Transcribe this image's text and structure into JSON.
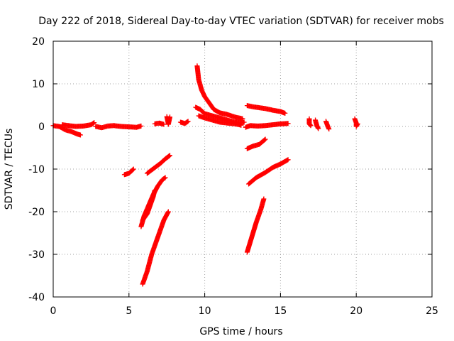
{
  "chart_data": {
    "type": "scatter",
    "title": "Day 222 of 2018, Sidereal Day-to-day VTEC variation (SDTVAR) for receiver mobs",
    "xlabel": "GPS time / hours",
    "ylabel": "SDTVAR / TECUs",
    "xlim": [
      0,
      25
    ],
    "ylim": [
      -40,
      20
    ],
    "xticks": [
      0,
      5,
      10,
      15,
      20,
      25
    ],
    "yticks": [
      -40,
      -30,
      -20,
      -10,
      0,
      10,
      20
    ],
    "grid": true,
    "marker": "+",
    "colors": {
      "series": "#ff0000",
      "grid": "#a0a0a0",
      "axis": "#000000"
    },
    "series": [
      {
        "name": "SDTVAR",
        "segments": [
          [
            [
              0.0,
              0.2
            ],
            [
              0.4,
              0.0
            ],
            [
              0.8,
              -0.8
            ],
            [
              1.2,
              -1.2
            ],
            [
              1.6,
              -1.8
            ],
            [
              1.8,
              -2.0
            ]
          ],
          [
            [
              0.6,
              0.4
            ],
            [
              1.0,
              0.2
            ],
            [
              1.5,
              0.0
            ],
            [
              2.0,
              0.1
            ],
            [
              2.5,
              0.4
            ],
            [
              2.7,
              0.9
            ]
          ],
          [
            [
              2.8,
              0.0
            ],
            [
              3.2,
              -0.3
            ],
            [
              3.6,
              0.1
            ],
            [
              4.0,
              0.2
            ],
            [
              4.5,
              0.0
            ],
            [
              5.0,
              -0.1
            ],
            [
              5.5,
              -0.2
            ],
            [
              5.8,
              0.1
            ]
          ],
          [
            [
              4.7,
              -11.3
            ],
            [
              5.0,
              -11.0
            ],
            [
              5.3,
              -10.0
            ]
          ],
          [
            [
              5.8,
              -23.5
            ],
            [
              6.0,
              -21.0
            ],
            [
              6.3,
              -18.5
            ],
            [
              6.6,
              -16.0
            ],
            [
              6.9,
              -14.0
            ],
            [
              7.2,
              -12.5
            ],
            [
              7.4,
              -12.0
            ]
          ],
          [
            [
              5.9,
              -22.0
            ],
            [
              6.2,
              -20.5
            ],
            [
              6.4,
              -18.5
            ],
            [
              6.6,
              -16.5
            ],
            [
              6.7,
              -15.0
            ]
          ],
          [
            [
              5.9,
              -37.0
            ],
            [
              6.2,
              -34.0
            ],
            [
              6.5,
              -30.0
            ],
            [
              6.8,
              -27.0
            ],
            [
              7.0,
              -25.0
            ],
            [
              7.3,
              -22.0
            ],
            [
              7.6,
              -20.0
            ]
          ],
          [
            [
              6.2,
              -11.0
            ],
            [
              6.5,
              -10.2
            ],
            [
              6.8,
              -9.4
            ],
            [
              7.1,
              -8.6
            ],
            [
              7.4,
              -7.6
            ],
            [
              7.7,
              -6.8
            ]
          ],
          [
            [
              6.7,
              0.6
            ],
            [
              7.0,
              0.8
            ],
            [
              7.3,
              0.5
            ]
          ],
          [
            [
              7.5,
              2.3
            ],
            [
              7.6,
              0.5
            ],
            [
              7.7,
              2.2
            ]
          ],
          [
            [
              8.4,
              1.0
            ],
            [
              8.7,
              0.7
            ],
            [
              8.9,
              1.2
            ]
          ],
          [
            [
              9.5,
              14.2
            ],
            [
              9.6,
              11.0
            ],
            [
              9.8,
              8.5
            ],
            [
              10.0,
              7.0
            ],
            [
              10.3,
              5.5
            ],
            [
              10.6,
              4.0
            ],
            [
              11.0,
              3.2
            ],
            [
              11.5,
              2.8
            ],
            [
              12.0,
              2.2
            ],
            [
              12.5,
              1.8
            ]
          ],
          [
            [
              9.4,
              4.5
            ],
            [
              9.7,
              4.0
            ],
            [
              10.0,
              3.0
            ],
            [
              10.5,
              2.5
            ],
            [
              11.0,
              2.0
            ],
            [
              11.5,
              1.5
            ],
            [
              12.0,
              1.0
            ],
            [
              12.6,
              1.0
            ]
          ],
          [
            [
              9.6,
              2.5
            ],
            [
              10.0,
              2.0
            ],
            [
              10.5,
              1.5
            ],
            [
              11.0,
              1.0
            ],
            [
              11.5,
              0.8
            ],
            [
              12.0,
              0.6
            ],
            [
              12.4,
              0.3
            ]
          ],
          [
            [
              12.7,
              -0.2
            ],
            [
              13.0,
              0.2
            ],
            [
              13.5,
              0.1
            ],
            [
              14.0,
              0.2
            ],
            [
              14.5,
              0.4
            ],
            [
              15.0,
              0.6
            ],
            [
              15.5,
              0.7
            ]
          ],
          [
            [
              12.8,
              4.9
            ],
            [
              13.2,
              4.6
            ],
            [
              13.6,
              4.4
            ],
            [
              14.0,
              4.2
            ],
            [
              14.5,
              3.8
            ],
            [
              15.0,
              3.5
            ],
            [
              15.3,
              3.1
            ]
          ],
          [
            [
              12.8,
              -5.2
            ],
            [
              13.2,
              -4.6
            ],
            [
              13.6,
              -4.2
            ],
            [
              14.0,
              -3.0
            ]
          ],
          [
            [
              12.9,
              -13.5
            ],
            [
              13.4,
              -12.0
            ],
            [
              14.0,
              -10.8
            ],
            [
              14.5,
              -9.6
            ],
            [
              15.0,
              -8.8
            ],
            [
              15.5,
              -7.8
            ]
          ],
          [
            [
              12.8,
              -29.5
            ],
            [
              13.1,
              -26.0
            ],
            [
              13.4,
              -22.5
            ],
            [
              13.7,
              -19.5
            ],
            [
              13.9,
              -17.0
            ]
          ],
          [
            [
              16.9,
              1.8
            ],
            [
              16.9,
              0.6
            ],
            [
              17.0,
              0.2
            ]
          ],
          [
            [
              17.3,
              1.5
            ],
            [
              17.4,
              0.2
            ],
            [
              17.5,
              -0.5
            ]
          ],
          [
            [
              18.0,
              1.2
            ],
            [
              18.1,
              0.2
            ],
            [
              18.2,
              -0.6
            ]
          ],
          [
            [
              19.9,
              1.8
            ],
            [
              20.0,
              0.8
            ],
            [
              20.0,
              0.0
            ],
            [
              20.1,
              0.6
            ]
          ]
        ]
      }
    ]
  }
}
